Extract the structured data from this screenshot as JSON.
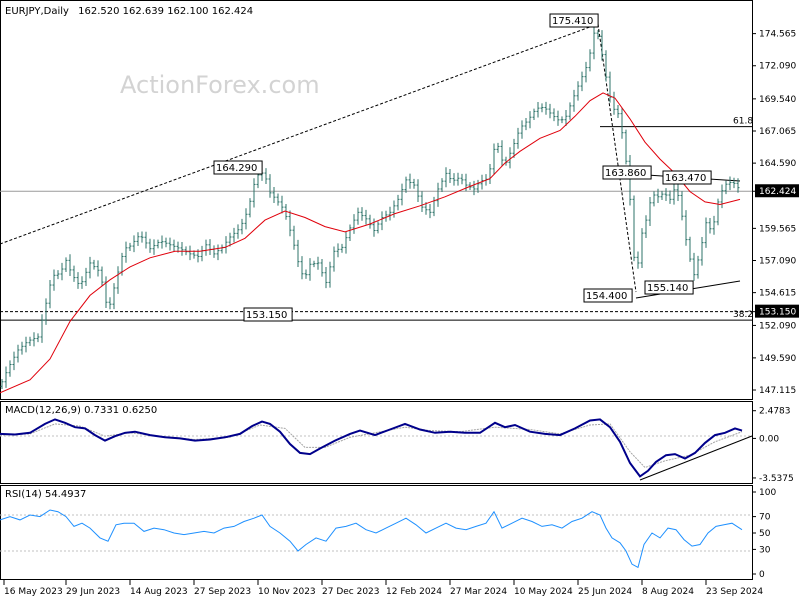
{
  "window": {
    "title": "EURJPY,Daily",
    "ohlc": "162.520 162.639 162.100 162.424"
  },
  "watermark": "ActionForex.com",
  "colors": {
    "bars": "#2d7369",
    "ma": "#e0000b",
    "macd": "#00008b",
    "signal": "#a5a5a5",
    "rsi": "#1e90ff",
    "price_tag": "#000000",
    "grid": "#000000"
  },
  "chart_data": [
    {
      "type": "ohlc",
      "title": "EURJPY,Daily",
      "x": [
        "16 May 2023",
        "29 Jun 2023",
        "14 Aug 2023",
        "27 Sep 2023",
        "10 Nov 2023",
        "27 Dec 2023",
        "12 Feb 2024",
        "27 Mar 2024",
        "10 May 2024",
        "25 Jun 2024",
        "8 Aug 2024",
        "23 Sep 2024"
      ],
      "y_ticks": [
        "174.565",
        "172.090",
        "169.540",
        "167.065",
        "164.590",
        "162.424",
        "159.565",
        "157.090",
        "154.615",
        "153.150",
        "152.090",
        "149.590",
        "147.115"
      ],
      "ylim": [
        146.5,
        177.0
      ],
      "close_path": [
        [
          0,
          147.4
        ],
        [
          8,
          148.8
        ],
        [
          18,
          150.2
        ],
        [
          28,
          150.9
        ],
        [
          38,
          151.2
        ],
        [
          46,
          153.8
        ],
        [
          52,
          155.9
        ],
        [
          60,
          156.1
        ],
        [
          66,
          157.1
        ],
        [
          72,
          156.0
        ],
        [
          80,
          155.1
        ],
        [
          90,
          156.9
        ],
        [
          100,
          156.2
        ],
        [
          108,
          153.1
        ],
        [
          116,
          155.6
        ],
        [
          124,
          158.0
        ],
        [
          130,
          158.2
        ],
        [
          140,
          159.1
        ],
        [
          150,
          158.0
        ],
        [
          160,
          158.6
        ],
        [
          170,
          158.3
        ],
        [
          180,
          158.0
        ],
        [
          190,
          157.6
        ],
        [
          198,
          157.4
        ],
        [
          206,
          158.3
        ],
        [
          214,
          157.6
        ],
        [
          222,
          158.1
        ],
        [
          230,
          158.9
        ],
        [
          240,
          159.6
        ],
        [
          248,
          161.0
        ],
        [
          256,
          163.6
        ],
        [
          264,
          163.9
        ],
        [
          270,
          162.3
        ],
        [
          276,
          161.8
        ],
        [
          284,
          161.0
        ],
        [
          292,
          158.9
        ],
        [
          298,
          157.0
        ],
        [
          304,
          155.6
        ],
        [
          310,
          156.8
        ],
        [
          318,
          156.9
        ],
        [
          326,
          155.4
        ],
        [
          334,
          157.8
        ],
        [
          342,
          158.1
        ],
        [
          350,
          159.6
        ],
        [
          358,
          160.8
        ],
        [
          366,
          160.3
        ],
        [
          374,
          159.4
        ],
        [
          382,
          160.4
        ],
        [
          390,
          160.8
        ],
        [
          398,
          161.8
        ],
        [
          406,
          163.3
        ],
        [
          414,
          162.9
        ],
        [
          422,
          161.2
        ],
        [
          430,
          160.8
        ],
        [
          438,
          162.6
        ],
        [
          446,
          163.8
        ],
        [
          452,
          163.2
        ],
        [
          460,
          163.5
        ],
        [
          466,
          162.9
        ],
        [
          474,
          162.6
        ],
        [
          480,
          163.2
        ],
        [
          488,
          163.4
        ],
        [
          496,
          166.4
        ],
        [
          504,
          164.3
        ],
        [
          512,
          165.7
        ],
        [
          520,
          167.3
        ],
        [
          528,
          167.9
        ],
        [
          536,
          168.8
        ],
        [
          544,
          168.9
        ],
        [
          552,
          168.3
        ],
        [
          560,
          167.8
        ],
        [
          566,
          168.2
        ],
        [
          572,
          169.4
        ],
        [
          580,
          170.9
        ],
        [
          588,
          172.3
        ],
        [
          594,
          174.6
        ],
        [
          599,
          174.3
        ],
        [
          605,
          171.6
        ],
        [
          612,
          168.9
        ],
        [
          618,
          168.4
        ],
        [
          624,
          166.2
        ],
        [
          630,
          161.8
        ],
        [
          636,
          155.1
        ],
        [
          640,
          158.7
        ],
        [
          646,
          160.2
        ],
        [
          652,
          162.2
        ],
        [
          658,
          162.0
        ],
        [
          664,
          162.3
        ],
        [
          670,
          161.8
        ],
        [
          676,
          162.9
        ],
        [
          682,
          160.5
        ],
        [
          688,
          157.8
        ],
        [
          694,
          156.0
        ],
        [
          700,
          157.7
        ],
        [
          706,
          160.0
        ],
        [
          712,
          159.3
        ],
        [
          718,
          161.6
        ],
        [
          724,
          162.9
        ],
        [
          730,
          163.1
        ],
        [
          736,
          163.0
        ],
        [
          740,
          162.4
        ]
      ],
      "ma_path": [
        [
          0,
          146.9
        ],
        [
          30,
          147.9
        ],
        [
          50,
          149.5
        ],
        [
          70,
          152.4
        ],
        [
          90,
          154.4
        ],
        [
          110,
          155.6
        ],
        [
          130,
          156.6
        ],
        [
          150,
          157.3
        ],
        [
          175,
          157.8
        ],
        [
          200,
          157.8
        ],
        [
          225,
          158.1
        ],
        [
          245,
          158.8
        ],
        [
          265,
          160.2
        ],
        [
          285,
          160.9
        ],
        [
          305,
          160.4
        ],
        [
          325,
          159.7
        ],
        [
          345,
          159.3
        ],
        [
          370,
          159.9
        ],
        [
          395,
          160.7
        ],
        [
          420,
          161.3
        ],
        [
          445,
          162.0
        ],
        [
          470,
          162.8
        ],
        [
          490,
          163.4
        ],
        [
          505,
          164.6
        ],
        [
          520,
          165.5
        ],
        [
          540,
          166.5
        ],
        [
          560,
          167.1
        ],
        [
          575,
          168.2
        ],
        [
          590,
          169.4
        ],
        [
          603,
          170.0
        ],
        [
          615,
          169.6
        ],
        [
          630,
          168.0
        ],
        [
          645,
          166.2
        ],
        [
          660,
          164.9
        ],
        [
          675,
          163.8
        ],
        [
          690,
          162.4
        ],
        [
          705,
          161.6
        ],
        [
          720,
          161.4
        ],
        [
          740,
          161.8
        ]
      ],
      "levels": [
        {
          "label": "61.8",
          "value": 167.4,
          "style": "solid"
        },
        {
          "label": "38.2",
          "value": 152.5,
          "style": "solid"
        },
        {
          "label": "153.150",
          "value": 153.15,
          "style": "dashed"
        },
        {
          "label": "162.424",
          "value": 162.424,
          "style": "solid-light"
        }
      ],
      "annotations": [
        {
          "label": "175.410",
          "value": 175.41
        },
        {
          "label": "164.290",
          "value": 164.29
        },
        {
          "label": "153.150",
          "value": 153.15
        },
        {
          "label": "163.860",
          "value": 163.86
        },
        {
          "label": "163.470",
          "value": 163.47
        },
        {
          "label": "154.400",
          "value": 154.4
        },
        {
          "label": "155.140",
          "value": 155.14
        }
      ],
      "price_tag": "162.424",
      "level_tag": "153.150"
    },
    {
      "type": "line",
      "title": "MACD(12,26,9) 0.7331 0.6250",
      "y_ticks": [
        "2.4783",
        "0.00",
        "-3.5375"
      ],
      "ylim": [
        -3.9,
        2.9
      ],
      "macd": [
        [
          0,
          0.4
        ],
        [
          15,
          0.35
        ],
        [
          30,
          0.5
        ],
        [
          45,
          1.3
        ],
        [
          55,
          1.7
        ],
        [
          65,
          1.4
        ],
        [
          75,
          1.0
        ],
        [
          85,
          0.9
        ],
        [
          95,
          0.3
        ],
        [
          105,
          -0.2
        ],
        [
          115,
          0.2
        ],
        [
          125,
          0.5
        ],
        [
          135,
          0.6
        ],
        [
          150,
          0.3
        ],
        [
          165,
          0.1
        ],
        [
          180,
          0.0
        ],
        [
          195,
          -0.2
        ],
        [
          210,
          -0.1
        ],
        [
          225,
          0.1
        ],
        [
          240,
          0.4
        ],
        [
          252,
          1.1
        ],
        [
          262,
          1.5
        ],
        [
          270,
          1.3
        ],
        [
          280,
          0.6
        ],
        [
          290,
          -0.5
        ],
        [
          300,
          -1.3
        ],
        [
          310,
          -1.4
        ],
        [
          320,
          -0.9
        ],
        [
          335,
          -0.2
        ],
        [
          350,
          0.4
        ],
        [
          360,
          0.7
        ],
        [
          375,
          0.3
        ],
        [
          390,
          0.8
        ],
        [
          405,
          1.3
        ],
        [
          420,
          0.8
        ],
        [
          435,
          0.5
        ],
        [
          450,
          0.6
        ],
        [
          465,
          0.5
        ],
        [
          480,
          0.5
        ],
        [
          495,
          1.4
        ],
        [
          505,
          1.0
        ],
        [
          515,
          1.2
        ],
        [
          530,
          0.6
        ],
        [
          545,
          0.4
        ],
        [
          560,
          0.3
        ],
        [
          575,
          0.9
        ],
        [
          590,
          1.6
        ],
        [
          600,
          1.7
        ],
        [
          610,
          1.0
        ],
        [
          620,
          -0.3
        ],
        [
          630,
          -2.2
        ],
        [
          640,
          -3.4
        ],
        [
          648,
          -2.9
        ],
        [
          656,
          -2.1
        ],
        [
          666,
          -1.5
        ],
        [
          675,
          -1.4
        ],
        [
          685,
          -1.8
        ],
        [
          695,
          -1.3
        ],
        [
          705,
          -0.4
        ],
        [
          715,
          0.3
        ],
        [
          725,
          0.5
        ],
        [
          735,
          0.9
        ],
        [
          742,
          0.7
        ]
      ],
      "signal": [
        [
          0,
          0.3
        ],
        [
          30,
          0.4
        ],
        [
          55,
          1.3
        ],
        [
          80,
          1.1
        ],
        [
          105,
          0.2
        ],
        [
          130,
          0.5
        ],
        [
          160,
          0.2
        ],
        [
          195,
          -0.1
        ],
        [
          230,
          0.1
        ],
        [
          260,
          1.2
        ],
        [
          285,
          0.9
        ],
        [
          305,
          -0.8
        ],
        [
          325,
          -0.8
        ],
        [
          350,
          0.1
        ],
        [
          375,
          0.5
        ],
        [
          405,
          1.0
        ],
        [
          430,
          0.7
        ],
        [
          460,
          0.6
        ],
        [
          495,
          1.0
        ],
        [
          530,
          0.8
        ],
        [
          560,
          0.4
        ],
        [
          590,
          1.2
        ],
        [
          610,
          1.3
        ],
        [
          630,
          -1.2
        ],
        [
          645,
          -2.6
        ],
        [
          665,
          -2.0
        ],
        [
          690,
          -1.5
        ],
        [
          715,
          -0.3
        ],
        [
          742,
          0.6
        ]
      ]
    },
    {
      "type": "line",
      "title": "RSI(14) 54.4937",
      "y_ticks": [
        "100",
        "70",
        "50",
        "30",
        "0"
      ],
      "ylim": [
        0,
        100
      ],
      "rsi": [
        [
          0,
          66
        ],
        [
          10,
          70
        ],
        [
          20,
          66
        ],
        [
          30,
          72
        ],
        [
          40,
          70
        ],
        [
          50,
          78
        ],
        [
          58,
          76
        ],
        [
          66,
          70
        ],
        [
          74,
          58
        ],
        [
          82,
          62
        ],
        [
          90,
          56
        ],
        [
          100,
          44
        ],
        [
          108,
          40
        ],
        [
          116,
          60
        ],
        [
          124,
          62
        ],
        [
          134,
          62
        ],
        [
          144,
          52
        ],
        [
          154,
          56
        ],
        [
          164,
          54
        ],
        [
          174,
          50
        ],
        [
          184,
          48
        ],
        [
          194,
          50
        ],
        [
          204,
          52
        ],
        [
          214,
          50
        ],
        [
          224,
          56
        ],
        [
          234,
          58
        ],
        [
          244,
          64
        ],
        [
          254,
          68
        ],
        [
          262,
          72
        ],
        [
          270,
          58
        ],
        [
          280,
          50
        ],
        [
          290,
          40
        ],
        [
          298,
          28
        ],
        [
          306,
          36
        ],
        [
          316,
          44
        ],
        [
          326,
          40
        ],
        [
          336,
          56
        ],
        [
          346,
          58
        ],
        [
          356,
          62
        ],
        [
          366,
          54
        ],
        [
          376,
          50
        ],
        [
          386,
          56
        ],
        [
          396,
          62
        ],
        [
          406,
          68
        ],
        [
          416,
          60
        ],
        [
          426,
          50
        ],
        [
          436,
          56
        ],
        [
          446,
          62
        ],
        [
          456,
          56
        ],
        [
          466,
          54
        ],
        [
          476,
          58
        ],
        [
          486,
          62
        ],
        [
          494,
          76
        ],
        [
          502,
          56
        ],
        [
          512,
          62
        ],
        [
          522,
          68
        ],
        [
          532,
          64
        ],
        [
          542,
          58
        ],
        [
          552,
          60
        ],
        [
          562,
          56
        ],
        [
          572,
          64
        ],
        [
          582,
          68
        ],
        [
          592,
          76
        ],
        [
          600,
          72
        ],
        [
          606,
          56
        ],
        [
          612,
          44
        ],
        [
          620,
          38
        ],
        [
          626,
          28
        ],
        [
          632,
          12
        ],
        [
          638,
          8
        ],
        [
          644,
          36
        ],
        [
          652,
          50
        ],
        [
          660,
          44
        ],
        [
          668,
          56
        ],
        [
          676,
          54
        ],
        [
          684,
          42
        ],
        [
          692,
          34
        ],
        [
          700,
          36
        ],
        [
          708,
          50
        ],
        [
          716,
          58
        ],
        [
          724,
          60
        ],
        [
          732,
          62
        ],
        [
          742,
          54
        ]
      ]
    }
  ],
  "x_axis": {
    "labels": [
      "16 May 2023",
      "29 Jun 2023",
      "14 Aug 2023",
      "27 Sep 2023",
      "10 Nov 2023",
      "27 Dec 2023",
      "12 Feb 2024",
      "27 Mar 2024",
      "10 May 2024",
      "25 Jun 2024",
      "8 Aug 2024",
      "23 Sep 2024"
    ]
  }
}
